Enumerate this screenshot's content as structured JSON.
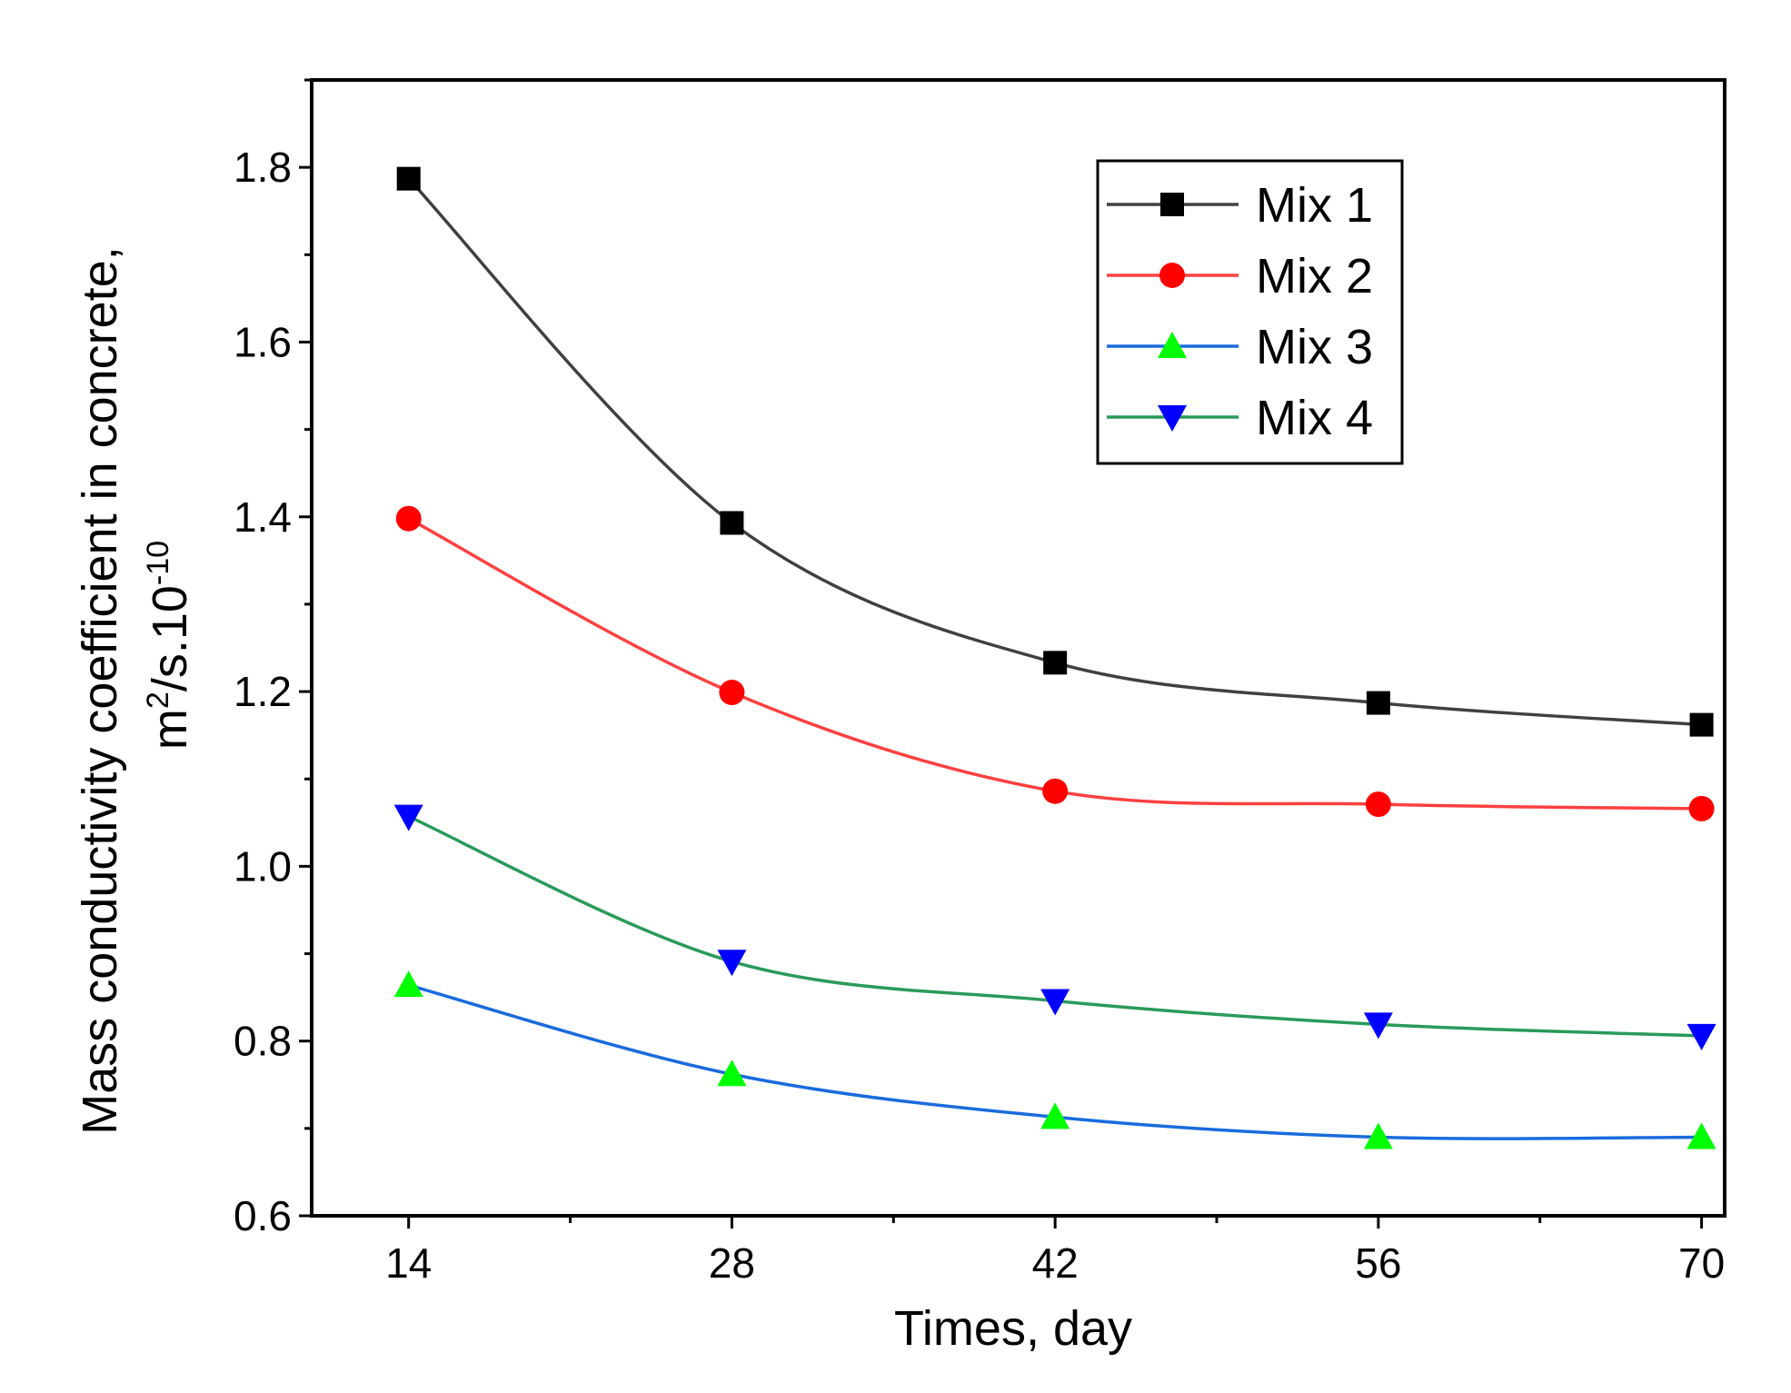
{
  "chart_data": {
    "type": "line",
    "title": "",
    "xlabel": "Times, day",
    "ylabel_line1": "Mass conductivity coefficient in concrete,",
    "ylabel_line2_base": "m",
    "ylabel_line2_sup": "2",
    "ylabel_line2_mid": "/s.10",
    "ylabel_line2_exp": "-10",
    "x": [
      14,
      28,
      42,
      56,
      70
    ],
    "xticks": [
      "14",
      "28",
      "42",
      "56",
      "70"
    ],
    "xlim": [
      9.8,
      71
    ],
    "ylim": [
      0.6,
      1.9
    ],
    "yticks": [
      "0.6",
      "0.8",
      "1.0",
      "1.2",
      "1.4",
      "1.6",
      "1.8"
    ],
    "ytick_values": [
      0.6,
      0.8,
      1.0,
      1.2,
      1.4,
      1.6,
      1.8
    ],
    "legend_position": "top-right",
    "series": [
      {
        "name": "Mix 1",
        "values": [
          1.787,
          1.393,
          1.233,
          1.187,
          1.162
        ],
        "color": "#404040",
        "marker": "square",
        "marker_color": "#000000"
      },
      {
        "name": "Mix 2",
        "values": [
          1.398,
          1.199,
          1.086,
          1.071,
          1.066
        ],
        "color": "#ff4040",
        "marker": "circle",
        "marker_color": "#ff0000"
      },
      {
        "name": "Mix 3",
        "values": [
          0.864,
          0.762,
          0.713,
          0.69,
          0.69
        ],
        "color": "#1a6bdd",
        "marker": "triangle-up",
        "marker_color": "#00ff00"
      },
      {
        "name": "Mix 4",
        "values": [
          1.057,
          0.891,
          0.846,
          0.819,
          0.806
        ],
        "color": "#2a9a5a",
        "marker": "triangle-down",
        "marker_color": "#0000ff"
      }
    ]
  }
}
